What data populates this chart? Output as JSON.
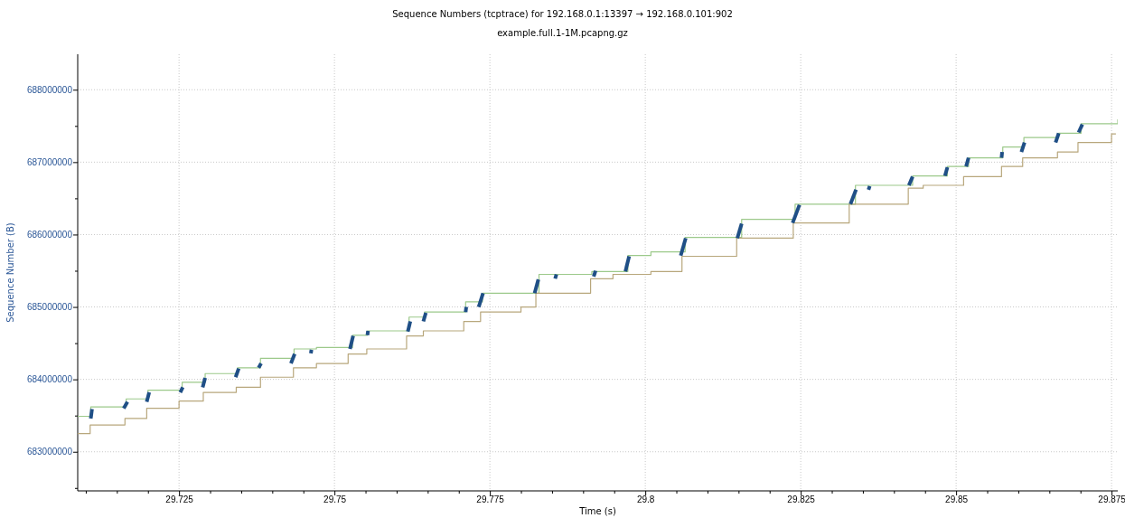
{
  "chart_data": {
    "type": "step",
    "title": "Sequence Numbers (tcptrace) for 192.168.0.1:13397 → 192.168.0.101:902",
    "subtitle": "example.full.1-1M.pcapng.gz",
    "xlabel": "Time (s)",
    "ylabel": "Sequence Number (B)",
    "xlim": [
      29.7087,
      29.876
    ],
    "ylim": [
      682460000,
      688490000
    ],
    "xticks": [
      {
        "value": 29.71,
        "label": null
      },
      {
        "value": 29.715,
        "label": null
      },
      {
        "value": 29.72,
        "label": null
      },
      29.725,
      {
        "value": 29.73,
        "label": null
      },
      {
        "value": 29.735,
        "label": null
      },
      {
        "value": 29.74,
        "label": null
      },
      {
        "value": 29.745,
        "label": null
      },
      29.75,
      {
        "value": 29.755,
        "label": null
      },
      {
        "value": 29.76,
        "label": null
      },
      {
        "value": 29.765,
        "label": null
      },
      {
        "value": 29.77,
        "label": null
      },
      29.775,
      {
        "value": 29.78,
        "label": null
      },
      {
        "value": 29.785,
        "label": null
      },
      {
        "value": 29.79,
        "label": null
      },
      {
        "value": 29.795,
        "label": null
      },
      29.8,
      {
        "value": 29.805,
        "label": null
      },
      {
        "value": 29.81,
        "label": null
      },
      {
        "value": 29.815,
        "label": null
      },
      {
        "value": 29.82,
        "label": null
      },
      29.825,
      {
        "value": 29.83,
        "label": null
      },
      {
        "value": 29.835,
        "label": null
      },
      {
        "value": 29.84,
        "label": null
      },
      {
        "value": 29.845,
        "label": null
      },
      29.85,
      {
        "value": 29.855,
        "label": null
      },
      {
        "value": 29.86,
        "label": null
      },
      {
        "value": 29.865,
        "label": null
      },
      {
        "value": 29.87,
        "label": null
      },
      29.875
    ],
    "yticks": [
      {
        "value": 682500000,
        "label": null
      },
      683000000,
      {
        "value": 683500000,
        "label": null
      },
      684000000,
      {
        "value": 684500000,
        "label": null
      },
      685000000,
      {
        "value": 685500000,
        "label": null
      },
      686000000,
      {
        "value": 686500000,
        "label": null
      },
      687000000,
      {
        "value": 687500000,
        "label": null
      },
      688000000
    ],
    "grid": true,
    "line_style": "solid",
    "series": [
      {
        "color": "#9cc98a",
        "x": [
          29.7087,
          29.7108,
          29.7165,
          29.72,
          29.7255,
          29.7292,
          29.7344,
          29.7381,
          29.7435,
          29.7471,
          29.7529,
          29.7553,
          29.762,
          29.7645,
          29.7711,
          29.7738,
          29.7829,
          29.7914,
          29.7972,
          29.8009,
          29.8064,
          29.8155,
          29.8241,
          29.8338,
          29.843,
          29.8486,
          29.852,
          29.8575,
          29.8609,
          29.8665,
          29.8701,
          29.875,
          29.876
        ],
        "values": [
          683490000,
          683620000,
          683730000,
          683850000,
          683960000,
          684080000,
          684160000,
          684290000,
          684420000,
          684440000,
          684610000,
          684670000,
          684860000,
          684930000,
          685070000,
          685190000,
          685450000,
          685490000,
          685710000,
          685760000,
          685960000,
          686210000,
          686420000,
          686680000,
          686810000,
          686940000,
          687060000,
          687210000,
          687340000,
          687400000,
          687530000,
          687530000,
          687590000
        ]
      },
      {
        "color": "#b8a77c",
        "x": [
          29.7087,
          29.7107,
          29.7163,
          29.7198,
          29.725,
          29.7289,
          29.7342,
          29.7381,
          29.7434,
          29.7471,
          29.7522,
          29.7552,
          29.7616,
          29.7643,
          29.7708,
          29.7735,
          29.78,
          29.7824,
          29.7912,
          29.7948,
          29.8009,
          29.8059,
          29.8147,
          29.8238,
          29.8328,
          29.8423,
          29.8447,
          29.8512,
          29.8573,
          29.8607,
          29.8663,
          29.8696,
          29.875,
          29.8757
        ],
        "values": [
          683250000,
          683370000,
          683460000,
          683600000,
          683700000,
          683820000,
          683890000,
          684030000,
          684160000,
          684220000,
          684350000,
          684420000,
          684600000,
          684670000,
          684800000,
          684930000,
          685000000,
          685190000,
          685390000,
          685450000,
          685490000,
          685700000,
          685950000,
          686160000,
          686420000,
          686640000,
          686680000,
          686800000,
          686940000,
          687060000,
          687140000,
          687270000,
          687390000,
          687390000
        ]
      },
      {
        "type": "line",
        "color": "#1f4f86",
        "x": [
          29.7108,
          29.711
        ],
        "values": [
          683460000,
          683590000
        ]
      },
      {
        "type": "line",
        "color": "#1f4f86",
        "x": [
          29.7161,
          29.7167
        ],
        "values": [
          683600000,
          683690000
        ]
      },
      {
        "type": "line",
        "color": "#1f4f86",
        "x": [
          29.7198,
          29.7202
        ],
        "values": [
          683690000,
          683820000
        ]
      },
      {
        "type": "line",
        "color": "#1f4f86",
        "x": [
          29.7252,
          29.7256
        ],
        "values": [
          683820000,
          683890000
        ]
      },
      {
        "type": "line",
        "color": "#1f4f86",
        "x": [
          29.7288,
          29.7292
        ],
        "values": [
          683890000,
          684020000
        ]
      },
      {
        "type": "line",
        "color": "#1f4f86",
        "x": [
          29.7341,
          29.7346
        ],
        "values": [
          684030000,
          684150000
        ]
      },
      {
        "type": "line",
        "color": "#1f4f86",
        "x": [
          29.7378,
          29.7382
        ],
        "values": [
          684160000,
          684220000
        ]
      },
      {
        "type": "line",
        "color": "#1f4f86",
        "x": [
          29.743,
          29.7436
        ],
        "values": [
          684220000,
          684350000
        ]
      },
      {
        "type": "line",
        "color": "#1f4f86",
        "x": [
          29.7462,
          29.7463
        ],
        "values": [
          684360000,
          684410000
        ]
      },
      {
        "type": "line",
        "color": "#1f4f86",
        "x": [
          29.7525,
          29.753
        ],
        "values": [
          684420000,
          684600000
        ]
      },
      {
        "type": "line",
        "color": "#1f4f86",
        "x": [
          29.7553,
          29.7554
        ],
        "values": [
          684610000,
          684670000
        ]
      },
      {
        "type": "line",
        "color": "#1f4f86",
        "x": [
          29.7618,
          29.7622
        ],
        "values": [
          684660000,
          684800000
        ]
      },
      {
        "type": "line",
        "color": "#1f4f86",
        "x": [
          29.7643,
          29.7647
        ],
        "values": [
          684800000,
          684920000
        ]
      },
      {
        "type": "line",
        "color": "#1f4f86",
        "x": [
          29.7711,
          29.7712
        ],
        "values": [
          684930000,
          685000000
        ]
      },
      {
        "type": "line",
        "color": "#1f4f86",
        "x": [
          29.7732,
          29.7739
        ],
        "values": [
          685000000,
          685190000
        ]
      },
      {
        "type": "line",
        "color": "#1f4f86",
        "x": [
          29.7822,
          29.7828
        ],
        "values": [
          685190000,
          685380000
        ]
      },
      {
        "type": "line",
        "color": "#1f4f86",
        "x": [
          29.7855,
          29.7857
        ],
        "values": [
          685390000,
          685450000
        ]
      },
      {
        "type": "line",
        "color": "#1f4f86",
        "x": [
          29.7917,
          29.792
        ],
        "values": [
          685420000,
          685500000
        ]
      },
      {
        "type": "line",
        "color": "#1f4f86",
        "x": [
          29.7968,
          29.7974
        ],
        "values": [
          685490000,
          685700000
        ]
      },
      {
        "type": "line",
        "color": "#1f4f86",
        "x": [
          29.8057,
          29.8065
        ],
        "values": [
          685710000,
          685950000
        ]
      },
      {
        "type": "line",
        "color": "#1f4f86",
        "x": [
          29.8148,
          29.8155
        ],
        "values": [
          685950000,
          686150000
        ]
      },
      {
        "type": "line",
        "color": "#1f4f86",
        "x": [
          29.8237,
          29.8248
        ],
        "values": [
          686160000,
          686410000
        ]
      },
      {
        "type": "line",
        "color": "#1f4f86",
        "x": [
          29.833,
          29.8339
        ],
        "values": [
          686420000,
          686620000
        ]
      },
      {
        "type": "line",
        "color": "#1f4f86",
        "x": [
          29.8359,
          29.8361
        ],
        "values": [
          686620000,
          686670000
        ]
      },
      {
        "type": "line",
        "color": "#1f4f86",
        "x": [
          29.8424,
          29.843
        ],
        "values": [
          686680000,
          686800000
        ]
      },
      {
        "type": "line",
        "color": "#1f4f86",
        "x": [
          29.8482,
          29.8486
        ],
        "values": [
          686810000,
          686930000
        ]
      },
      {
        "type": "line",
        "color": "#1f4f86",
        "x": [
          29.8516,
          29.852
        ],
        "values": [
          686940000,
          687060000
        ]
      },
      {
        "type": "line",
        "color": "#1f4f86",
        "x": [
          29.8573,
          29.8574
        ],
        "values": [
          687060000,
          687140000
        ]
      },
      {
        "type": "line",
        "color": "#1f4f86",
        "x": [
          29.8605,
          29.861
        ],
        "values": [
          687140000,
          687270000
        ]
      },
      {
        "type": "line",
        "color": "#1f4f86",
        "x": [
          29.866,
          29.8665
        ],
        "values": [
          687270000,
          687400000
        ]
      },
      {
        "type": "line",
        "color": "#1f4f86",
        "x": [
          29.8697,
          29.8703
        ],
        "values": [
          687410000,
          687520000
        ]
      }
    ]
  }
}
